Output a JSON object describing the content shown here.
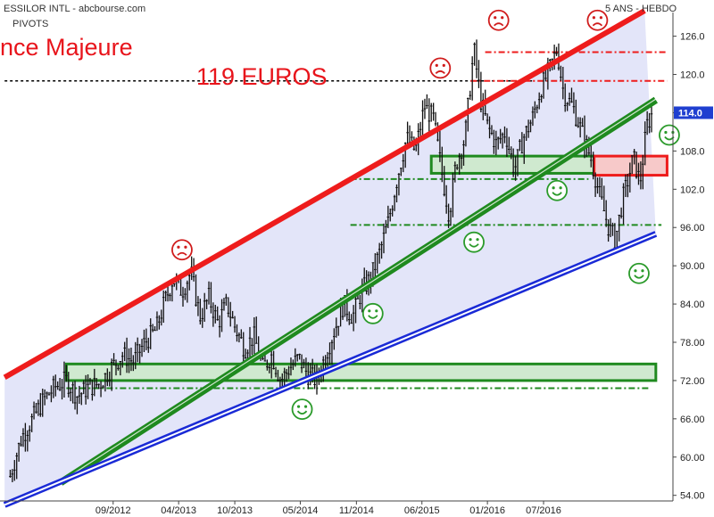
{
  "header": {
    "left_title": "ESSILOR INTL - abcbourse.com",
    "left_subtitle": "PIVOTS",
    "right_title": "5 ANS - HEBDO"
  },
  "annotations": {
    "resistance_text": "nce Majeure",
    "target_text": "119 EUROS"
  },
  "colors": {
    "channel_fill": "#d9dcf7",
    "resistance_red": "#ee1c1c",
    "support_green": "#1f8a1f",
    "support_blue": "#1a2ad6",
    "box_green_fill": "#cfe9cf",
    "box_red_fill": "#f7c9c9",
    "price_tag": "#1f3fd0"
  },
  "icons": {
    "sad": "sad-face-icon",
    "happy": "happy-face-icon"
  },
  "chart_data": {
    "type": "candlestick",
    "ylim": [
      52,
      130
    ],
    "y_ticks": [
      "126.0",
      "120.0",
      "114.0",
      "108.0",
      "102.0",
      "96.00",
      "90.00",
      "84.00",
      "78.00",
      "72.00",
      "66.00",
      "60.00",
      "54.00"
    ],
    "x_ticks": [
      "09/2012",
      "04/2013",
      "10/2013",
      "05/2014",
      "11/2014",
      "06/2015",
      "01/2016",
      "07/2016"
    ],
    "last_price": "114.0",
    "price_path": [
      [
        2011.75,
        57
      ],
      [
        2011.85,
        63
      ],
      [
        2011.95,
        66
      ],
      [
        2012.05,
        69
      ],
      [
        2012.15,
        71
      ],
      [
        2012.25,
        72
      ],
      [
        2012.35,
        69.5
      ],
      [
        2012.45,
        71
      ],
      [
        2012.55,
        71.5
      ],
      [
        2012.65,
        74
      ],
      [
        2012.75,
        76
      ],
      [
        2012.85,
        75
      ],
      [
        2012.95,
        78
      ],
      [
        2013.05,
        80
      ],
      [
        2013.12,
        84
      ],
      [
        2013.2,
        88
      ],
      [
        2013.28,
        86
      ],
      [
        2013.36,
        89
      ],
      [
        2013.44,
        82
      ],
      [
        2013.52,
        85
      ],
      [
        2013.6,
        81
      ],
      [
        2013.68,
        84
      ],
      [
        2013.76,
        80
      ],
      [
        2013.84,
        77
      ],
      [
        2013.92,
        79
      ],
      [
        2014.0,
        74
      ],
      [
        2014.08,
        76
      ],
      [
        2014.16,
        72
      ],
      [
        2014.24,
        74
      ],
      [
        2014.32,
        75.5
      ],
      [
        2014.4,
        73
      ],
      [
        2014.48,
        72
      ],
      [
        2014.56,
        76
      ],
      [
        2014.64,
        80
      ],
      [
        2014.72,
        84
      ],
      [
        2014.8,
        82
      ],
      [
        2014.88,
        86
      ],
      [
        2014.96,
        88
      ],
      [
        2015.04,
        92
      ],
      [
        2015.12,
        97
      ],
      [
        2015.2,
        104
      ],
      [
        2015.28,
        110
      ],
      [
        2015.36,
        108
      ],
      [
        2015.44,
        115
      ],
      [
        2015.52,
        113
      ],
      [
        2015.6,
        104
      ],
      [
        2015.66,
        98
      ],
      [
        2015.72,
        106
      ],
      [
        2015.8,
        110
      ],
      [
        2015.88,
        124
      ],
      [
        2015.94,
        116
      ],
      [
        2016.0,
        112
      ],
      [
        2016.08,
        109
      ],
      [
        2016.16,
        111
      ],
      [
        2016.24,
        105
      ],
      [
        2016.32,
        110
      ],
      [
        2016.4,
        113
      ],
      [
        2016.48,
        118
      ],
      [
        2016.56,
        121
      ],
      [
        2016.62,
        124
      ],
      [
        2016.68,
        117
      ],
      [
        2016.76,
        115
      ],
      [
        2016.84,
        111
      ],
      [
        2016.92,
        107
      ],
      [
        2017.0,
        101
      ],
      [
        2017.08,
        96
      ],
      [
        2017.14,
        94
      ],
      [
        2017.2,
        100
      ],
      [
        2017.26,
        104
      ],
      [
        2017.3,
        107
      ],
      [
        2017.36,
        103
      ],
      [
        2017.42,
        112
      ],
      [
        2017.47,
        114
      ]
    ],
    "trend_lines": [
      {
        "name": "red-resistance-channel",
        "points": [
          [
            2011.7,
            72.5
          ],
          [
            2017.4,
            130
          ]
        ]
      },
      {
        "name": "green-support",
        "points": [
          [
            2012.2,
            56
          ],
          [
            2017.5,
            116
          ]
        ]
      },
      {
        "name": "blue-support",
        "points": [
          [
            2011.7,
            52.5
          ],
          [
            2017.5,
            95
          ]
        ]
      }
    ],
    "horizontal_levels": [
      {
        "name": "resistance-119-black",
        "y": 119,
        "style": "dashed-black",
        "x": [
          2011.7,
          2016.4
        ]
      },
      {
        "name": "resistance-119-red",
        "y": 119,
        "style": "dashdot-red",
        "x": [
          2015.85,
          2017.6
        ]
      },
      {
        "name": "resistance-123-red",
        "y": 123.5,
        "style": "dashdot-red",
        "x": [
          2015.98,
          2017.6
        ]
      },
      {
        "name": "support-104-green",
        "y": 103.6,
        "style": "dashdot-green",
        "x": [
          2014.78,
          2016.9
        ]
      },
      {
        "name": "support-96-green",
        "y": 96.4,
        "style": "dashdot-green",
        "x": [
          2014.78,
          2017.55
        ]
      },
      {
        "name": "support-71-green",
        "y": 70.8,
        "style": "dashdot-green",
        "x": [
          2012.25,
          2017.45
        ]
      }
    ],
    "zones": [
      {
        "name": "support-zone-72",
        "y": [
          72,
          74.6
        ],
        "x": [
          2012.25,
          2017.5
        ],
        "color": "green"
      },
      {
        "name": "support-zone-105",
        "y": [
          104.5,
          107.2
        ],
        "x": [
          2015.5,
          2016.95
        ],
        "color": "green"
      },
      {
        "name": "resistance-zone-106",
        "y": [
          104.2,
          107.2
        ],
        "x": [
          2016.95,
          2017.6
        ],
        "color": "red"
      }
    ],
    "smileys": [
      {
        "name": "sad-1",
        "kind": "sad",
        "x": 2013.28,
        "y": 92.5
      },
      {
        "name": "sad-2",
        "kind": "sad",
        "x": 2015.58,
        "y": 121
      },
      {
        "name": "sad-3",
        "kind": "sad",
        "x": 2016.1,
        "y": 128.5
      },
      {
        "name": "sad-4",
        "kind": "sad",
        "x": 2016.98,
        "y": 128.5
      },
      {
        "name": "happy-1",
        "kind": "happy",
        "x": 2014.35,
        "y": 67.5
      },
      {
        "name": "happy-2",
        "kind": "happy",
        "x": 2014.98,
        "y": 82.5
      },
      {
        "name": "happy-3",
        "kind": "happy",
        "x": 2015.88,
        "y": 93.7
      },
      {
        "name": "happy-4",
        "kind": "happy",
        "x": 2016.62,
        "y": 101.8
      },
      {
        "name": "happy-5",
        "kind": "happy",
        "x": 2017.35,
        "y": 88.8
      },
      {
        "name": "happy-6",
        "kind": "happy",
        "x": 2017.62,
        "y": 110.5
      }
    ]
  }
}
